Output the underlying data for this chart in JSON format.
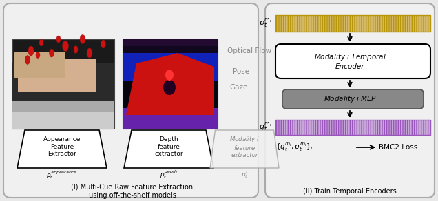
{
  "fig_width": 6.36,
  "fig_height": 2.92,
  "dpi": 100,
  "bg_color": "#e8e8e8",
  "panel_bg": "#ebebeb",
  "left_panel": {
    "caption_line1": "(I) Multi-Cue Raw Feature Extraction",
    "caption_line2": "using off-the-shelf models",
    "optical_flow": "Optical Flow",
    "pose": "Pose",
    "gaze": "Gaze",
    "dots": ". . . .",
    "box1_label": "Appearance\nFeature\nExtractor",
    "box2_label": "Depth\nfeature\nextractor",
    "box3_label": "Modality $i$\nfeature\nextractor",
    "label1": "$p_t^{appearance}$",
    "label2": "$p_t^{depth}$",
    "label3": "$p_t^{i}$"
  },
  "right_panel": {
    "caption": "(II) Train Temporal Encoders",
    "bar1_label": "$p_t^{m_i}$",
    "bar1_color": "#d4b96a",
    "bar2_label": "$q_t^{m_i}$",
    "bar2_color": "#c8a8d8",
    "box1_label": "Modality $i$ Temporal\nEncoder",
    "box2_label": "Modality $i$ MLP",
    "box2_color": "#888888",
    "bmc2_loss": "BMC2 Loss"
  }
}
